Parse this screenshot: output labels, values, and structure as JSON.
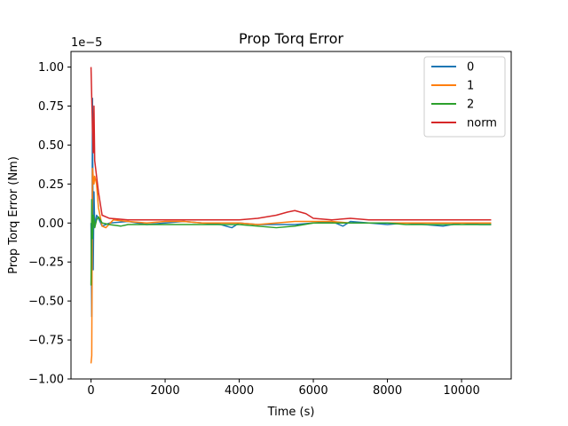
{
  "chart_data": {
    "type": "line",
    "title": "Prop Torq Error",
    "xlabel": "Time (s)",
    "ylabel": "Prop Torq Error (Nm)",
    "y_offset_text": "1e−5",
    "y_scale_exponent": -5,
    "xlim": [
      -540,
      11340
    ],
    "ylim": [
      -1.0,
      1.1
    ],
    "x_ticks": [
      0,
      2000,
      4000,
      6000,
      8000,
      10000
    ],
    "x_tick_labels": [
      "0",
      "2000",
      "4000",
      "6000",
      "8000",
      "10000"
    ],
    "y_ticks": [
      -1.0,
      -0.75,
      -0.5,
      -0.25,
      0.0,
      0.25,
      0.5,
      0.75,
      1.0
    ],
    "y_tick_labels": [
      "−1.00",
      "−0.75",
      "−0.50",
      "−0.25",
      "0.00",
      "0.25",
      "0.50",
      "0.75",
      "1.00"
    ],
    "grid": false,
    "legend_position": "upper right",
    "series": [
      {
        "name": "0",
        "color": "#1f77b4",
        "points": [
          [
            0,
            0.0
          ],
          [
            20,
            -0.6
          ],
          [
            40,
            0.8
          ],
          [
            60,
            -0.3
          ],
          [
            80,
            0.2
          ],
          [
            100,
            -0.02
          ],
          [
            150,
            0.05
          ],
          [
            200,
            0.03
          ],
          [
            300,
            -0.02
          ],
          [
            500,
            0.0
          ],
          [
            1000,
            0.01
          ],
          [
            1500,
            -0.01
          ],
          [
            2000,
            0.0
          ],
          [
            2500,
            0.01
          ],
          [
            3000,
            0.0
          ],
          [
            3500,
            -0.01
          ],
          [
            3800,
            -0.03
          ],
          [
            4000,
            0.0
          ],
          [
            4500,
            -0.01
          ],
          [
            5000,
            -0.01
          ],
          [
            5500,
            -0.01
          ],
          [
            6000,
            0.0
          ],
          [
            6500,
            0.01
          ],
          [
            6800,
            -0.02
          ],
          [
            7000,
            0.01
          ],
          [
            7500,
            0.0
          ],
          [
            8000,
            -0.01
          ],
          [
            8500,
            0.0
          ],
          [
            9000,
            -0.01
          ],
          [
            9500,
            -0.02
          ],
          [
            10000,
            0.0
          ],
          [
            10500,
            -0.01
          ],
          [
            10800,
            -0.01
          ]
        ]
      },
      {
        "name": "1",
        "color": "#ff7f0e",
        "points": [
          [
            0,
            -0.9
          ],
          [
            20,
            -0.85
          ],
          [
            40,
            0.35
          ],
          [
            60,
            0.3
          ],
          [
            80,
            0.25
          ],
          [
            100,
            0.3
          ],
          [
            150,
            0.25
          ],
          [
            200,
            0.1
          ],
          [
            300,
            -0.02
          ],
          [
            400,
            -0.03
          ],
          [
            600,
            0.02
          ],
          [
            1000,
            0.01
          ],
          [
            1500,
            0.0
          ],
          [
            2000,
            0.01
          ],
          [
            2500,
            0.01
          ],
          [
            3000,
            0.0
          ],
          [
            3500,
            0.0
          ],
          [
            4000,
            0.0
          ],
          [
            4500,
            -0.01
          ],
          [
            5000,
            0.0
          ],
          [
            5500,
            0.01
          ],
          [
            6000,
            0.01
          ],
          [
            6500,
            0.01
          ],
          [
            7000,
            0.0
          ],
          [
            7500,
            0.0
          ],
          [
            8000,
            0.0
          ],
          [
            8500,
            0.0
          ],
          [
            9000,
            0.0
          ],
          [
            9500,
            0.0
          ],
          [
            10000,
            0.0
          ],
          [
            10800,
            0.0
          ]
        ]
      },
      {
        "name": "2",
        "color": "#2ca02c",
        "points": [
          [
            0,
            -0.4
          ],
          [
            20,
            0.15
          ],
          [
            40,
            -0.1
          ],
          [
            60,
            0.05
          ],
          [
            80,
            0.03
          ],
          [
            100,
            -0.03
          ],
          [
            150,
            0.02
          ],
          [
            200,
            0.04
          ],
          [
            300,
            0.0
          ],
          [
            500,
            -0.01
          ],
          [
            800,
            -0.02
          ],
          [
            1000,
            -0.01
          ],
          [
            1500,
            -0.01
          ],
          [
            2000,
            -0.01
          ],
          [
            2500,
            -0.01
          ],
          [
            3000,
            -0.01
          ],
          [
            3500,
            -0.01
          ],
          [
            4000,
            -0.01
          ],
          [
            4500,
            -0.02
          ],
          [
            5000,
            -0.03
          ],
          [
            5500,
            -0.02
          ],
          [
            6000,
            0.0
          ],
          [
            6500,
            0.0
          ],
          [
            7000,
            0.0
          ],
          [
            7500,
            0.0
          ],
          [
            8000,
            0.0
          ],
          [
            8500,
            -0.01
          ],
          [
            9000,
            -0.01
          ],
          [
            9500,
            -0.01
          ],
          [
            10000,
            -0.01
          ],
          [
            10800,
            -0.01
          ]
        ]
      },
      {
        "name": "norm",
        "color": "#d62728",
        "points": [
          [
            0,
            1.0
          ],
          [
            20,
            0.8
          ],
          [
            40,
            0.6
          ],
          [
            60,
            0.45
          ],
          [
            80,
            0.75
          ],
          [
            100,
            0.4
          ],
          [
            150,
            0.3
          ],
          [
            200,
            0.2
          ],
          [
            300,
            0.05
          ],
          [
            500,
            0.03
          ],
          [
            1000,
            0.02
          ],
          [
            1500,
            0.02
          ],
          [
            2000,
            0.02
          ],
          [
            2500,
            0.02
          ],
          [
            3000,
            0.02
          ],
          [
            3500,
            0.02
          ],
          [
            4000,
            0.02
          ],
          [
            4500,
            0.03
          ],
          [
            5000,
            0.05
          ],
          [
            5300,
            0.07
          ],
          [
            5500,
            0.08
          ],
          [
            5800,
            0.06
          ],
          [
            6000,
            0.03
          ],
          [
            6500,
            0.02
          ],
          [
            7000,
            0.03
          ],
          [
            7500,
            0.02
          ],
          [
            8000,
            0.02
          ],
          [
            8500,
            0.02
          ],
          [
            9000,
            0.02
          ],
          [
            9500,
            0.02
          ],
          [
            10000,
            0.02
          ],
          [
            10800,
            0.02
          ]
        ]
      }
    ]
  }
}
